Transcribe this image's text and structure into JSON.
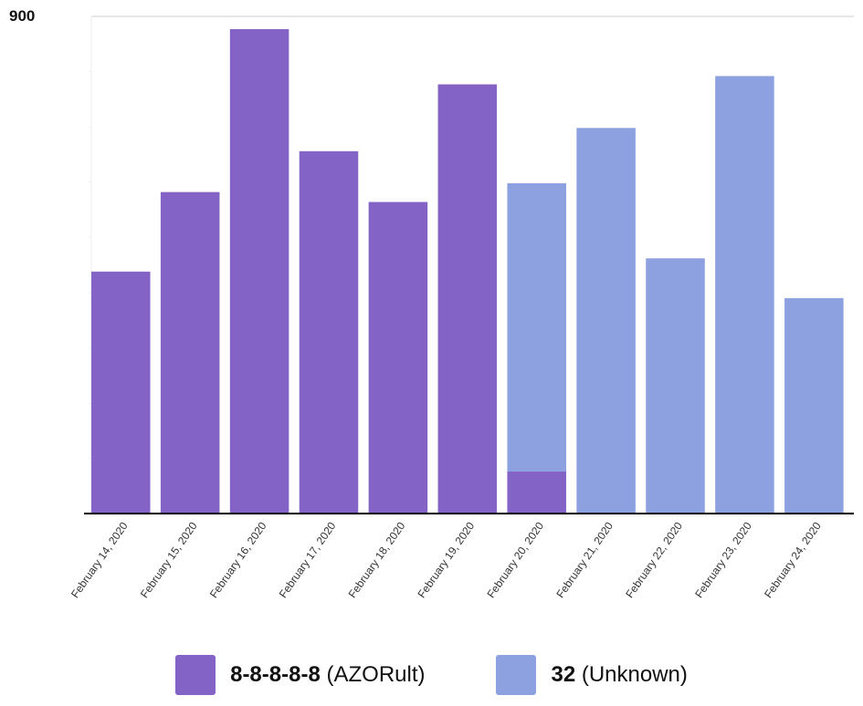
{
  "chart_data": {
    "type": "bar",
    "stacked": true,
    "categories": [
      "February 14, 2020",
      "February 15, 2020",
      "February 16, 2020",
      "February 17, 2020",
      "February 18, 2020",
      "February 19, 2020",
      "February 20, 2020",
      "February 21, 2020",
      "February 22, 2020",
      "February 23, 2020",
      "February 24, 2020"
    ],
    "series": [
      {
        "name": "8-8-8-8-8 (AZORult)",
        "code": "8-8-8-8-8",
        "family": "(AZORult)",
        "color": "#8463C6",
        "values": [
          438,
          582,
          877,
          656,
          564,
          777,
          76,
          0,
          0,
          0,
          0
        ]
      },
      {
        "name": "32 (Unknown)",
        "code": "32",
        "family": "(Unknown)",
        "color": "#8DA0E0",
        "values": [
          0,
          0,
          0,
          0,
          0,
          0,
          522,
          698,
          462,
          792,
          390
        ]
      }
    ],
    "ylim": [
      0,
      900
    ],
    "ytick_labels": [
      "900"
    ],
    "xlabel": "",
    "ylabel": "",
    "grid": "top line only",
    "legend_position": "bottom"
  }
}
